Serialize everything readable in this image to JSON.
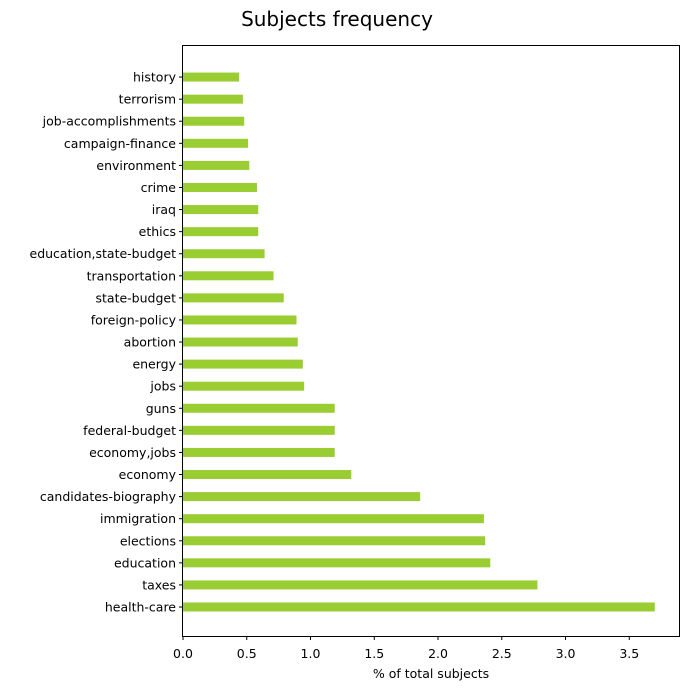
{
  "chart_data": {
    "type": "bar",
    "orientation": "horizontal",
    "title": "Subjects frequency",
    "xlabel": "% of total subjects",
    "ylabel": "",
    "xlim": [
      0,
      3.89
    ],
    "xticks": [
      "0.0",
      "0.5",
      "1.0",
      "1.5",
      "2.0",
      "2.5",
      "3.0",
      "3.5"
    ],
    "bar_color": "#9acd32",
    "grid": false,
    "categories": [
      "health-care",
      "taxes",
      "education",
      "elections",
      "immigration",
      "candidates-biography",
      "economy",
      "economy,jobs",
      "federal-budget",
      "guns",
      "jobs",
      "energy",
      "abortion",
      "foreign-policy",
      "state-budget",
      "transportation",
      "education,state-budget",
      "ethics",
      "iraq",
      "crime",
      "environment",
      "campaign-finance",
      "job-accomplishments",
      "terrorism",
      "history"
    ],
    "values": [
      3.7,
      2.78,
      2.41,
      2.37,
      2.36,
      1.86,
      1.32,
      1.19,
      1.19,
      1.19,
      0.95,
      0.94,
      0.9,
      0.89,
      0.79,
      0.71,
      0.64,
      0.59,
      0.59,
      0.58,
      0.52,
      0.51,
      0.48,
      0.47,
      0.44
    ]
  }
}
